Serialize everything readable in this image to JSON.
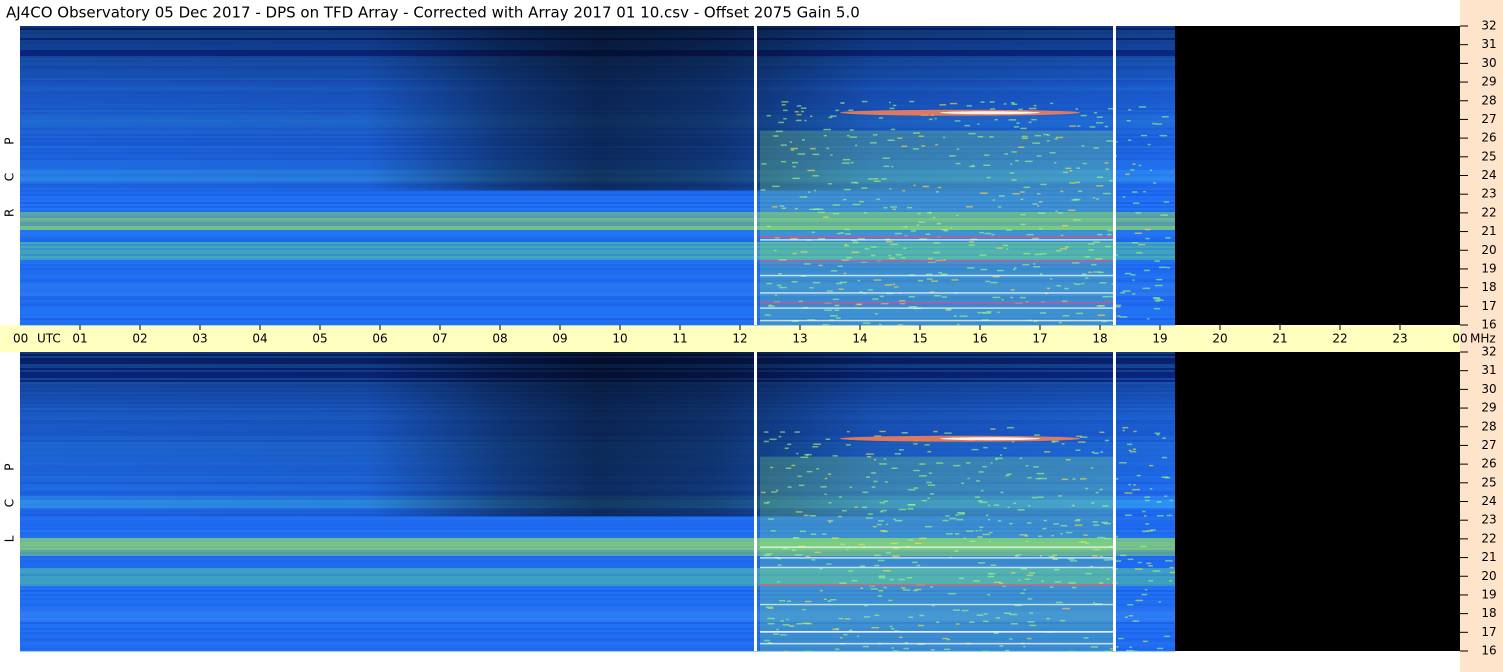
{
  "title": "AJ4CO Observatory  05 Dec 2017  -  DPS on TFD Array  -  Corrected with Array 2017 01 10.csv  -  Offset 2075  Gain 5.0",
  "panels": [
    {
      "label": [
        "R",
        "C",
        "P"
      ]
    },
    {
      "label": [
        "L",
        "C",
        "P"
      ]
    }
  ],
  "time_axis": {
    "start": "00",
    "zone": "UTC",
    "hours": [
      "01",
      "02",
      "03",
      "04",
      "05",
      "06",
      "07",
      "08",
      "09",
      "10",
      "11",
      "12",
      "13",
      "14",
      "15",
      "16",
      "17",
      "18",
      "19",
      "20",
      "21",
      "22",
      "23"
    ],
    "end": "00",
    "unit": "MHz"
  },
  "freq_axis": [
    "32",
    "31",
    "30",
    "29",
    "28",
    "27",
    "26",
    "25",
    "24",
    "23",
    "22",
    "21",
    "20",
    "19",
    "18",
    "17",
    "16"
  ]
}
